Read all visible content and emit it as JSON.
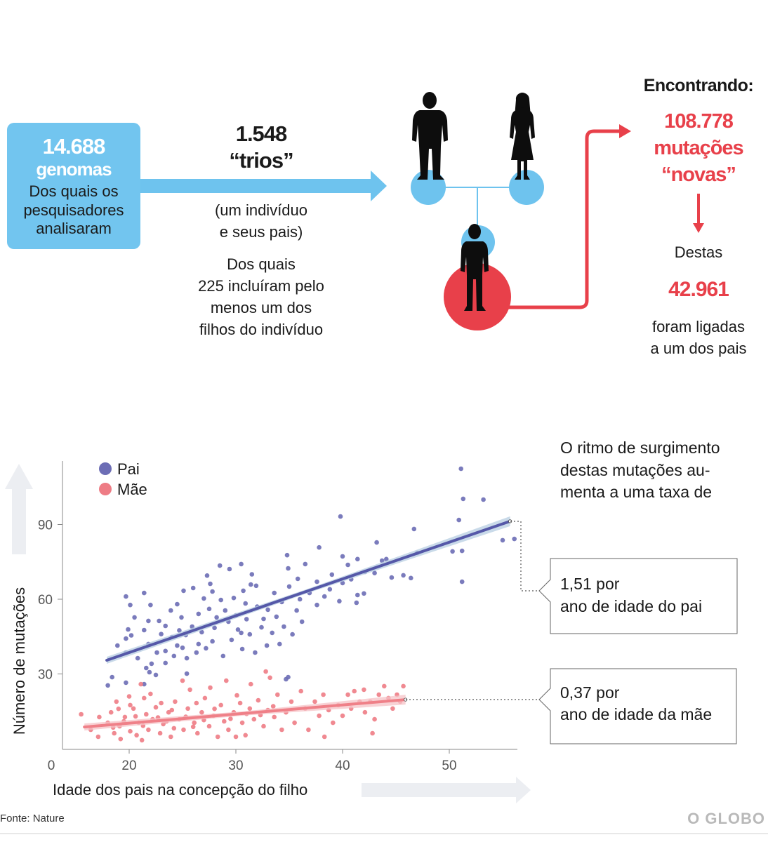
{
  "colors": {
    "blue": "#6ec3ee",
    "red": "#e8404a",
    "silhouette": "#0d0d0d",
    "arrow_grey": "#eceef2",
    "text": "#1a1a1a"
  },
  "genomes_box": {
    "count": "14.688",
    "unit": "genomas",
    "lines": [
      "Dos quais os",
      "pesquisadores",
      "analisaram"
    ]
  },
  "trios": {
    "count": "1.548",
    "label": "“trios”",
    "desc_lines": [
      "(um indivíduo",
      "e seus pais)"
    ],
    "subset_lines": [
      "Dos quais",
      "225 incluíram pelo",
      "menos um dos",
      "filhos do indivíduo"
    ]
  },
  "family_icons": [
    "father-icon",
    "mother-icon",
    "child-icon"
  ],
  "findings": {
    "heading": "Encontrando:",
    "count": "108.778",
    "label_lines": [
      "mutações",
      "“novas”"
    ],
    "destas": "Destas",
    "linked_count": "42.961",
    "linked_lines": [
      "foram ligadas",
      "a um dos pais"
    ]
  },
  "chart_intro_lines": [
    "O ritmo de surgimento",
    "destas mutações au-",
    "menta a uma taxa de"
  ],
  "annotations": {
    "pai": [
      "1,51 por",
      "ano de idade do pai"
    ],
    "mae": [
      "0,37 por",
      "ano de idade da mãe"
    ]
  },
  "source": "Fonte: Nature",
  "logo": "O GLOBO",
  "chart_data": {
    "type": "scatter",
    "title": "",
    "xlabel": "Idade dos pais na concepção do filho",
    "ylabel": "Número de mutações",
    "xlim": [
      13.8,
      56.4
    ],
    "ylim": [
      0,
      116
    ],
    "x_ticks": [
      20,
      30,
      40,
      50
    ],
    "x_origin_label": "0",
    "y_ticks": [
      30,
      60,
      90
    ],
    "grid": false,
    "legend": "top-left",
    "series": [
      {
        "name": "Pai",
        "color": "#6c6db5",
        "fit_color": "#5558a8",
        "band_color": "#b7cde1",
        "fit": [
          [
            17.9,
            35.5
          ],
          [
            55.7,
            91.3
          ]
        ],
        "points": [
          [
            51.1,
            112.4
          ],
          [
            51.3,
            100.3
          ],
          [
            53.2,
            100.0
          ],
          [
            50.9,
            91.8
          ],
          [
            39.8,
            93.2
          ],
          [
            56.1,
            84.2
          ],
          [
            55.0,
            83.7
          ],
          [
            51.2,
            79.4
          ],
          [
            50.3,
            79.2
          ],
          [
            51.2,
            67.0
          ],
          [
            46.7,
            88.2
          ],
          [
            47.0,
            78.6
          ],
          [
            45.7,
            69.6
          ],
          [
            46.4,
            68.5
          ],
          [
            43.7,
            75.5
          ],
          [
            43.2,
            82.8
          ],
          [
            44.1,
            76.1
          ],
          [
            44.6,
            68.7
          ],
          [
            41.4,
            76.1
          ],
          [
            40.5,
            73.8
          ],
          [
            40.0,
            77.2
          ],
          [
            39.0,
            69.9
          ],
          [
            37.6,
            67.0
          ],
          [
            38.3,
            61.1
          ],
          [
            39.7,
            59.2
          ],
          [
            41.4,
            61.7
          ],
          [
            42.0,
            62.3
          ],
          [
            41.3,
            58.6
          ],
          [
            34.8,
            77.7
          ],
          [
            34.9,
            72.4
          ],
          [
            36.5,
            74.1
          ],
          [
            35.8,
            68.2
          ],
          [
            35.0,
            65.1
          ],
          [
            34.3,
            58.9
          ],
          [
            33.0,
            55.8
          ],
          [
            32.6,
            52.1
          ],
          [
            31.4,
            65.9
          ],
          [
            30.7,
            63.4
          ],
          [
            31.9,
            65.4
          ],
          [
            28.5,
            73.5
          ],
          [
            29.4,
            72.1
          ],
          [
            30.5,
            74.1
          ],
          [
            27.8,
            63.1
          ],
          [
            27.0,
            60.3
          ],
          [
            28.6,
            59.7
          ],
          [
            27.5,
            56.1
          ],
          [
            28.2,
            52.7
          ],
          [
            29.3,
            51.0
          ],
          [
            30.0,
            53.5
          ],
          [
            29.6,
            43.7
          ],
          [
            30.5,
            46.5
          ],
          [
            31.3,
            45.9
          ],
          [
            32.4,
            48.7
          ],
          [
            33.4,
            46.5
          ],
          [
            34.1,
            42.0
          ],
          [
            34.5,
            49.0
          ],
          [
            26.5,
            54.1
          ],
          [
            25.9,
            49.0
          ],
          [
            25.3,
            45.6
          ],
          [
            24.9,
            52.7
          ],
          [
            23.9,
            55.5
          ],
          [
            23.4,
            49.3
          ],
          [
            24.0,
            44.8
          ],
          [
            24.5,
            41.4
          ],
          [
            23.4,
            39.2
          ],
          [
            22.6,
            38.6
          ],
          [
            21.8,
            42.0
          ],
          [
            21.4,
            47.6
          ],
          [
            21.8,
            51.3
          ],
          [
            22.0,
            57.7
          ],
          [
            21.4,
            62.5
          ],
          [
            20.1,
            57.7
          ],
          [
            19.7,
            61.1
          ],
          [
            20.5,
            52.7
          ],
          [
            19.9,
            47.9
          ],
          [
            19.7,
            44.2
          ],
          [
            18.9,
            41.4
          ],
          [
            19.7,
            38.6
          ],
          [
            20.8,
            36.3
          ],
          [
            22.1,
            34.1
          ],
          [
            23.4,
            34.4
          ],
          [
            24.2,
            37.2
          ],
          [
            25.4,
            36.3
          ],
          [
            26.3,
            38.6
          ],
          [
            27.2,
            40.3
          ],
          [
            27.8,
            43.1
          ],
          [
            25.4,
            30.1
          ],
          [
            22.5,
            29.6
          ],
          [
            21.9,
            30.7
          ],
          [
            21.4,
            25.9
          ],
          [
            18.0,
            25.4
          ],
          [
            18.4,
            28.7
          ],
          [
            19.7,
            26.5
          ],
          [
            21.6,
            32.4
          ],
          [
            25.1,
            63.4
          ],
          [
            26.0,
            64.5
          ],
          [
            27.6,
            66.2
          ],
          [
            22.8,
            51.3
          ],
          [
            36.9,
            62.5
          ],
          [
            37.6,
            57.7
          ],
          [
            35.7,
            55.5
          ],
          [
            36.2,
            51.0
          ],
          [
            35.3,
            45.9
          ],
          [
            32.9,
            41.4
          ],
          [
            31.8,
            38.6
          ],
          [
            30.6,
            40.0
          ],
          [
            28.8,
            37.2
          ],
          [
            34.9,
            28.7
          ],
          [
            34.7,
            27.9
          ],
          [
            30.9,
            58.3
          ],
          [
            33.6,
            62.5
          ],
          [
            40.0,
            66.5
          ],
          [
            42.1,
            71.0
          ],
          [
            37.8,
            80.8
          ],
          [
            23.0,
            46.0
          ],
          [
            24.7,
            47.5
          ],
          [
            26.8,
            46.8
          ],
          [
            28.0,
            48.5
          ],
          [
            29.0,
            55.5
          ],
          [
            31.0,
            52.0
          ],
          [
            32.0,
            57.0
          ],
          [
            33.8,
            53.0
          ],
          [
            36.0,
            60.0
          ],
          [
            38.8,
            64.0
          ],
          [
            40.8,
            68.0
          ],
          [
            43.0,
            70.5
          ],
          [
            27.3,
            69.5
          ],
          [
            24.5,
            58.0
          ],
          [
            20.2,
            45.5
          ],
          [
            29.8,
            60.5
          ],
          [
            31.5,
            70.0
          ],
          [
            26.5,
            42.0
          ],
          [
            25.0,
            40.5
          ],
          [
            30.2,
            47.8
          ]
        ]
      },
      {
        "name": "Mãe",
        "color": "#ee7c85",
        "fit_color": "#ef8088",
        "band_color": "#f6c3c7",
        "fit": [
          [
            15.8,
            8.7
          ],
          [
            45.9,
            19.7
          ]
        ],
        "points": [
          [
            15.5,
            13.8
          ],
          [
            16.4,
            7.6
          ],
          [
            17.1,
            4.8
          ],
          [
            18.0,
            10.4
          ],
          [
            18.3,
            14.6
          ],
          [
            18.6,
            6.2
          ],
          [
            18.8,
            18.9
          ],
          [
            19.1,
            9.0
          ],
          [
            19.2,
            3.9
          ],
          [
            19.6,
            12.7
          ],
          [
            20.1,
            7.0
          ],
          [
            20.4,
            16.1
          ],
          [
            20.9,
            10.4
          ],
          [
            21.2,
            3.4
          ],
          [
            21.4,
            20.3
          ],
          [
            21.6,
            13.8
          ],
          [
            21.8,
            7.6
          ],
          [
            22.2,
            11.8
          ],
          [
            22.5,
            16.6
          ],
          [
            22.9,
            6.2
          ],
          [
            23.2,
            9.9
          ],
          [
            23.7,
            14.6
          ],
          [
            23.9,
            4.8
          ],
          [
            24.3,
            18.9
          ],
          [
            24.7,
            11.8
          ],
          [
            25.1,
            7.6
          ],
          [
            25.5,
            16.1
          ],
          [
            25.7,
            23.7
          ],
          [
            26.1,
            10.4
          ],
          [
            26.4,
            6.2
          ],
          [
            26.8,
            14.6
          ],
          [
            27.1,
            20.3
          ],
          [
            27.5,
            9.0
          ],
          [
            27.9,
            13.2
          ],
          [
            28.3,
            4.8
          ],
          [
            28.6,
            17.5
          ],
          [
            28.9,
            11.0
          ],
          [
            29.3,
            7.6
          ],
          [
            29.8,
            14.6
          ],
          [
            30.1,
            21.4
          ],
          [
            30.6,
            10.4
          ],
          [
            30.9,
            5.4
          ],
          [
            31.3,
            16.1
          ],
          [
            31.7,
            11.8
          ],
          [
            32.1,
            19.4
          ],
          [
            32.6,
            9.0
          ],
          [
            32.8,
            31.0
          ],
          [
            33.2,
            28.5
          ],
          [
            33.0,
            15.5
          ],
          [
            33.6,
            12.7
          ],
          [
            33.9,
            21.7
          ],
          [
            34.3,
            7.6
          ],
          [
            34.7,
            14.6
          ],
          [
            35.2,
            18.9
          ],
          [
            35.5,
            10.4
          ],
          [
            36.1,
            23.1
          ],
          [
            36.5,
            16.1
          ],
          [
            36.8,
            7.6
          ],
          [
            37.4,
            18.9
          ],
          [
            37.8,
            13.2
          ],
          [
            38.2,
            21.7
          ],
          [
            38.7,
            15.5
          ],
          [
            39.1,
            10.4
          ],
          [
            39.6,
            17.5
          ],
          [
            40.0,
            13.2
          ],
          [
            40.5,
            21.7
          ],
          [
            40.8,
            16.1
          ],
          [
            41.1,
            23.1
          ],
          [
            41.6,
            18.9
          ],
          [
            42.0,
            23.7
          ],
          [
            42.1,
            14.6
          ],
          [
            42.6,
            18.9
          ],
          [
            43.0,
            11.8
          ],
          [
            43.4,
            21.7
          ],
          [
            43.9,
            25.1
          ],
          [
            44.3,
            20.3
          ],
          [
            44.7,
            16.1
          ],
          [
            45.1,
            21.7
          ],
          [
            45.7,
            25.1
          ],
          [
            45.4,
            18.9
          ],
          [
            25.0,
            27.3
          ],
          [
            21.1,
            25.9
          ],
          [
            27.6,
            24.5
          ],
          [
            29.1,
            27.3
          ],
          [
            31.4,
            25.9
          ],
          [
            20.1,
            17.5
          ],
          [
            23.0,
            18.3
          ],
          [
            26.3,
            18.3
          ],
          [
            30.4,
            18.3
          ],
          [
            17.2,
            12.7
          ],
          [
            20.7,
            5.4
          ],
          [
            24.2,
            8.2
          ],
          [
            30.0,
            4.8
          ],
          [
            38.3,
            4.8
          ],
          [
            42.8,
            6.2
          ],
          [
            19.5,
            11.0
          ],
          [
            20.6,
            13.0
          ],
          [
            21.3,
            9.2
          ],
          [
            22.7,
            12.5
          ],
          [
            23.5,
            11.0
          ],
          [
            24.0,
            15.5
          ],
          [
            25.3,
            12.8
          ],
          [
            26.0,
            8.8
          ],
          [
            27.0,
            11.5
          ],
          [
            28.0,
            16.0
          ],
          [
            29.5,
            12.0
          ],
          [
            31.0,
            14.0
          ],
          [
            32.3,
            13.5
          ],
          [
            33.5,
            17.0
          ],
          [
            20.0,
            21.0
          ],
          [
            22.0,
            22.0
          ],
          [
            19.0,
            16.0
          ],
          [
            18.5,
            8.5
          ]
        ]
      }
    ]
  }
}
